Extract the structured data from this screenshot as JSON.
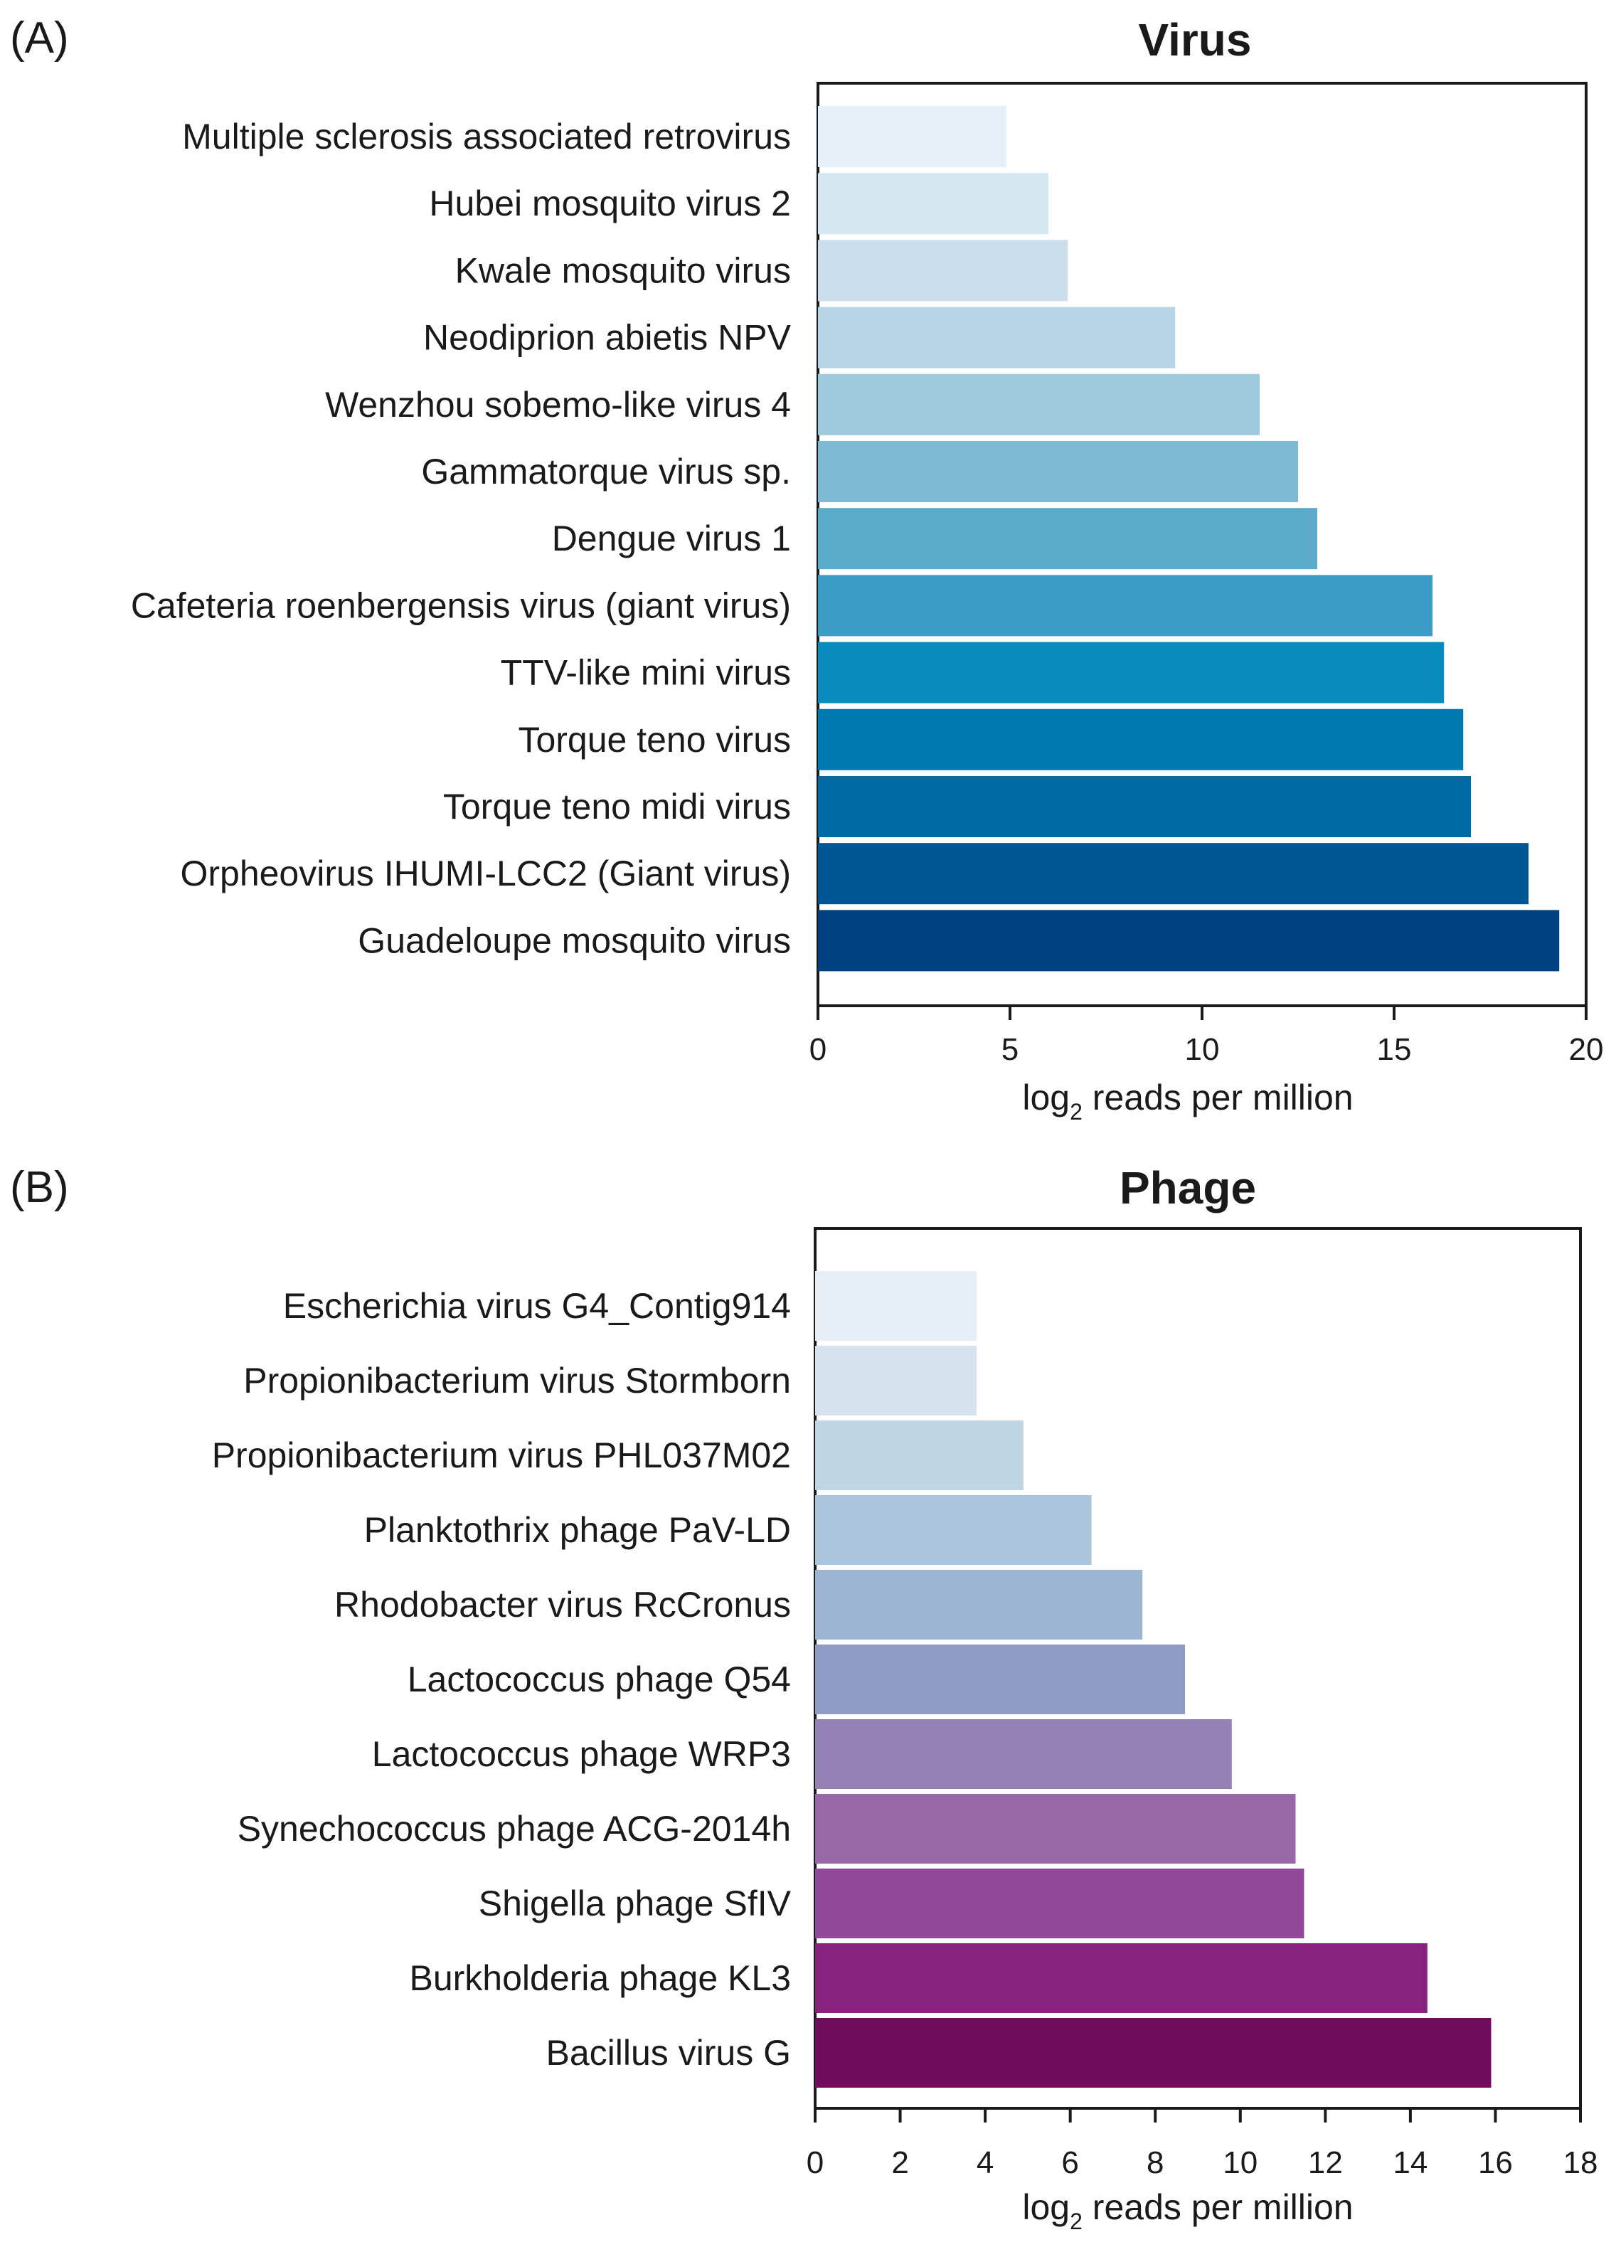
{
  "chart_data": [
    {
      "type": "bar",
      "orientation": "horizontal",
      "panel_label": "(A)",
      "title": "Virus",
      "xlabel_main": "log",
      "xlabel_sub": "2",
      "xlabel_rest": " reads per million",
      "xlim": [
        0,
        20
      ],
      "xticks": [
        "0",
        "5",
        "10",
        "15",
        "20"
      ],
      "xtick_values": [
        0,
        5,
        10,
        15,
        20
      ],
      "categories": [
        "Multiple sclerosis associated retrovirus",
        "Hubei mosquito virus 2",
        "Kwale mosquito virus",
        "Neodiprion abietis NPV",
        "Wenzhou sobemo-like virus 4",
        "Gammatorque virus sp.",
        "Dengue virus 1",
        "Cafeteria roenbergensis virus (giant virus)",
        "TTV-like mini virus",
        "Torque teno virus",
        "Torque teno midi virus",
        "Orpheovirus IHUMI-LCC2 (Giant virus)",
        "Guadeloupe mosquito virus"
      ],
      "values": [
        4.9,
        6.0,
        6.5,
        9.3,
        11.5,
        12.5,
        13.0,
        16.0,
        16.3,
        16.8,
        17.0,
        18.5,
        19.3
      ],
      "colors": [
        "#e5f0f8",
        "#d7e7f2",
        "#cadeed",
        "#b7d5e7",
        "#9dcadc",
        "#7fbad5",
        "#5aaaca",
        "#3b9cc5",
        "#0a8bbd",
        "#0079b0",
        "#006aa4",
        "#005593",
        "#00427f"
      ]
    },
    {
      "type": "bar",
      "orientation": "horizontal",
      "panel_label": "(B)",
      "title": "Phage",
      "xlabel_main": "log",
      "xlabel_sub": "2",
      "xlabel_rest": " reads per million",
      "xlim": [
        0,
        18
      ],
      "xticks": [
        "0",
        "2",
        "4",
        "6",
        "8",
        "10",
        "12",
        "14",
        "16",
        "18"
      ],
      "xtick_values": [
        0,
        2,
        4,
        6,
        8,
        10,
        12,
        14,
        16,
        18
      ],
      "categories": [
        "Escherichia virus G4_Contig914",
        "Propionibacterium virus Stormborn",
        "Propionibacterium virus PHL037M02",
        "Planktothrix phage PaV-LD",
        "Rhodobacter virus RcCronus",
        "Lactococcus phage Q54",
        "Lactococcus phage WRP3",
        "Synechococcus phage ACG-2014h",
        "Shigella phage SfIV",
        "Burkholderia phage KL3",
        "Bacillus virus G"
      ],
      "values": [
        3.8,
        3.8,
        4.9,
        6.5,
        7.7,
        8.7,
        9.8,
        11.3,
        11.5,
        14.4,
        15.9
      ],
      "colors": [
        "#e6eef6",
        "#d6e3ee",
        "#c0d5e4",
        "#abc6dc",
        "#9cb5d2",
        "#8f9cc6",
        "#9481b6",
        "#9767a8",
        "#914898",
        "#86237e",
        "#6e0d5e"
      ]
    }
  ]
}
